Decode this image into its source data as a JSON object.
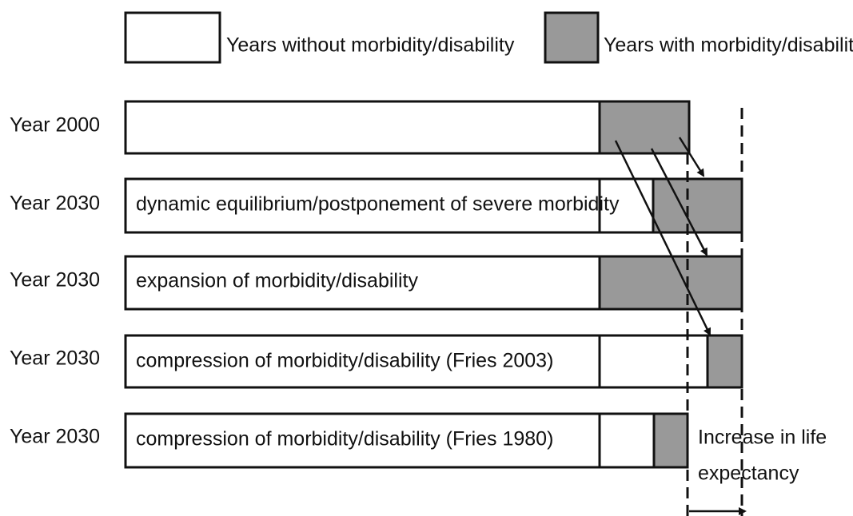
{
  "legend": [
    {
      "label": "Years without morbidity/disability"
    },
    {
      "label": "Years with morbidity/disability"
    }
  ],
  "rows": [
    {
      "year": "Year 2000",
      "text": null
    },
    {
      "year": "Year 2030",
      "text": "dynamic equilibrium/postponement of severe morbidity"
    },
    {
      "year": "Year 2030",
      "text": "expansion of morbidity/disability"
    },
    {
      "year": "Year 2030",
      "text": "compression of morbidity/disability (Fries 2003)"
    },
    {
      "year": "Year 2030",
      "text": "compression of morbidity/disability (Fries 1980)"
    }
  ],
  "annotation": [
    "Increase in life",
    "expectancy"
  ]
}
